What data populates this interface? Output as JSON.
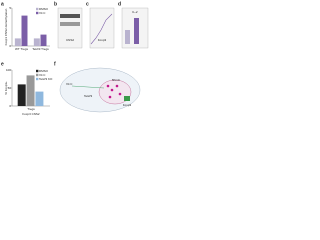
{
  "panels": [
    "a",
    "b",
    "c",
    "d",
    "e",
    "f"
  ],
  "chart_a": {
    "type": "bar",
    "ylabel": "Foxp3 CNS2 demethylation",
    "categories": [
      "WT Tregs",
      "Tet2/3 Tregs"
    ],
    "series": [
      {
        "name": "DMSO",
        "color": "#b9b3cf",
        "values": [
          1,
          1
        ]
      },
      {
        "name": "Vit C",
        "color": "#7b5ea7",
        "values": [
          4,
          1.5
        ]
      }
    ],
    "ylim": [
      0,
      5
    ],
    "yticks": [
      0,
      5
    ]
  },
  "chart_e": {
    "type": "bar",
    "ylabel": "% Foxp3+",
    "xlabel": "Foxp3 CNS2",
    "categories": [
      "Tregs"
    ],
    "series": [
      {
        "name": "DMSO",
        "color": "#222222",
        "values": [
          60
        ]
      },
      {
        "name": "Vit C",
        "color": "#999999",
        "values": [
          85
        ]
      },
      {
        "name": "Tet2/3 KO",
        "color": "#8fb8de",
        "values": [
          40
        ]
      }
    ],
    "ylim": [
      0,
      100
    ],
    "yticks": [
      0,
      50,
      100
    ]
  },
  "panel_texts": [
    "CNS2",
    "Foxp3",
    "IL-2"
  ],
  "diagram": {
    "labels": [
      "Vit C",
      "Tet2/3",
      "Foxp3",
      "5hmC"
    ]
  }
}
